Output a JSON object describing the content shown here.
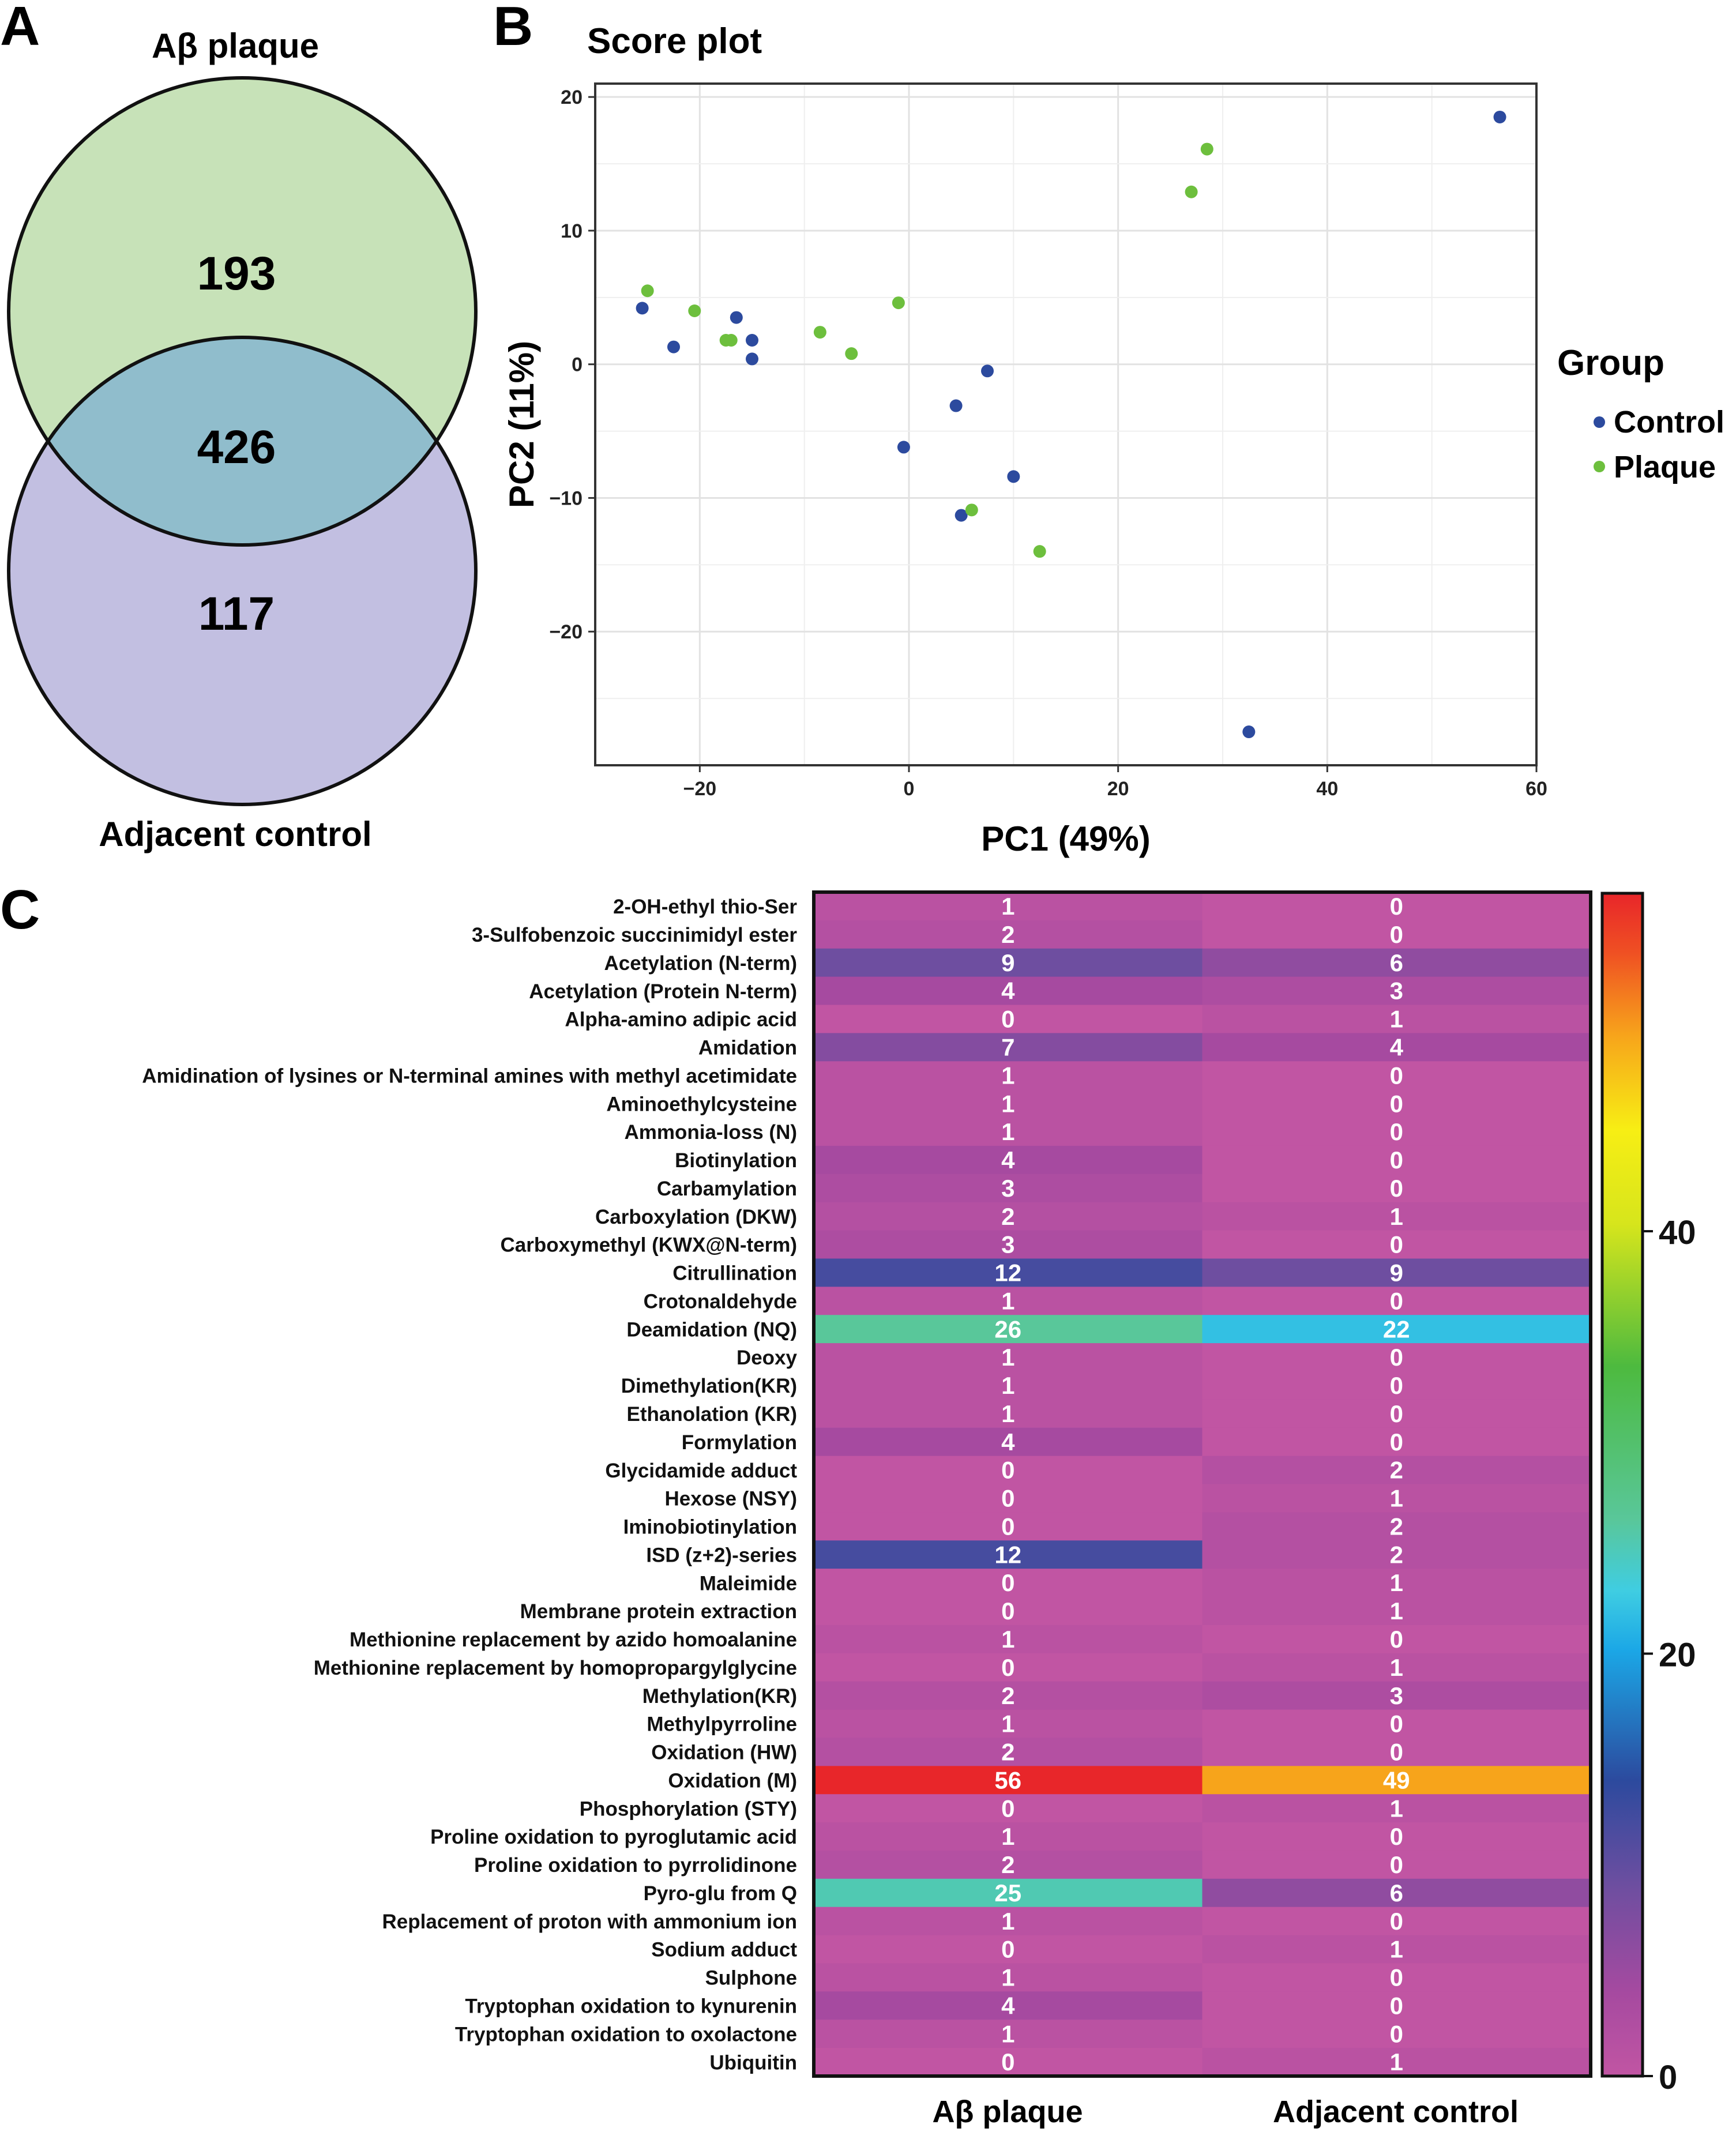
{
  "panels": {
    "a": {
      "letter": "A"
    },
    "b": {
      "letter": "B"
    },
    "c": {
      "letter": "C"
    }
  },
  "colors": {
    "venn_top": "#c7e2b8",
    "venn_bottom": "#c2bfe1",
    "venn_overlap": "#90bdcc",
    "control": "#2c4a9e",
    "plaque": "#6dbf3d"
  },
  "chart_data": [
    {
      "type": "venn",
      "sets": [
        {
          "name": "Aβ plaque",
          "only": 193
        },
        {
          "name": "Adjacent control",
          "only": 117
        }
      ],
      "overlap": 426
    },
    {
      "type": "scatter",
      "title": "Score plot",
      "xlabel": "PC1 (49%)",
      "ylabel": "PC2  (11%)",
      "xlim": [
        -30,
        60
      ],
      "ylim": [
        -30,
        21
      ],
      "xticks": [
        -20,
        0,
        20,
        40,
        60
      ],
      "xtick_labels": [
        "−20",
        "0",
        "20",
        "40",
        "60"
      ],
      "yticks": [
        -20,
        -10,
        0,
        10,
        20
      ],
      "ytick_labels": [
        "−20",
        "−10",
        "0",
        "10",
        "20"
      ],
      "grid": true,
      "legend": {
        "title": "Group",
        "position": "right"
      },
      "series": [
        {
          "name": "Control",
          "color": "#2c4a9e",
          "points": [
            [
              56.5,
              18.5
            ],
            [
              -25.5,
              4.2
            ],
            [
              -22.5,
              1.3
            ],
            [
              -16.5,
              3.5
            ],
            [
              -15.0,
              1.8
            ],
            [
              -15.0,
              0.4
            ],
            [
              7.5,
              -0.5
            ],
            [
              4.5,
              -3.1
            ],
            [
              -0.5,
              -6.2
            ],
            [
              10.0,
              -8.4
            ],
            [
              5.0,
              -11.3
            ],
            [
              32.5,
              -27.5
            ]
          ]
        },
        {
          "name": "Plaque",
          "color": "#6dbf3d",
          "points": [
            [
              28.5,
              16.1
            ],
            [
              27.0,
              12.9
            ],
            [
              -25.0,
              5.5
            ],
            [
              -20.5,
              4.0
            ],
            [
              -17.5,
              1.8
            ],
            [
              -17.0,
              1.8
            ],
            [
              -8.5,
              2.4
            ],
            [
              -5.5,
              0.8
            ],
            [
              -1.0,
              4.6
            ],
            [
              6.0,
              -10.9
            ],
            [
              12.5,
              -14.0
            ]
          ]
        }
      ]
    },
    {
      "type": "heatmap",
      "columns": [
        "Aβ plaque",
        "Adjacent control"
      ],
      "colorbar": {
        "min": 0,
        "max": 56,
        "ticks": [
          0,
          20,
          40
        ]
      },
      "rows": [
        {
          "label": "2-OH-ethyl thio-Ser",
          "values": [
            1,
            0
          ]
        },
        {
          "label": "3-Sulfobenzoic succinimidyl ester",
          "values": [
            2,
            0
          ]
        },
        {
          "label": "Acetylation (N-term)",
          "values": [
            9,
            6
          ]
        },
        {
          "label": "Acetylation (Protein N-term)",
          "values": [
            4,
            3
          ]
        },
        {
          "label": "Alpha-amino adipic acid",
          "values": [
            0,
            1
          ]
        },
        {
          "label": "Amidation",
          "values": [
            7,
            4
          ]
        },
        {
          "label": "Amidination of lysines or N-terminal amines with methyl acetimidate",
          "values": [
            1,
            0
          ]
        },
        {
          "label": "Aminoethylcysteine",
          "values": [
            1,
            0
          ]
        },
        {
          "label": "Ammonia-loss (N)",
          "values": [
            1,
            0
          ]
        },
        {
          "label": "Biotinylation",
          "values": [
            4,
            0
          ]
        },
        {
          "label": "Carbamylation",
          "values": [
            3,
            0
          ]
        },
        {
          "label": "Carboxylation (DKW)",
          "values": [
            2,
            1
          ]
        },
        {
          "label": "Carboxymethyl (KWX@N-term)",
          "values": [
            3,
            0
          ]
        },
        {
          "label": "Citrullination",
          "values": [
            12,
            9
          ]
        },
        {
          "label": "Crotonaldehyde",
          "values": [
            1,
            0
          ]
        },
        {
          "label": "Deamidation (NQ)",
          "values": [
            26,
            22
          ]
        },
        {
          "label": "Deoxy",
          "values": [
            1,
            0
          ]
        },
        {
          "label": "Dimethylation(KR)",
          "values": [
            1,
            0
          ]
        },
        {
          "label": "Ethanolation (KR)",
          "values": [
            1,
            0
          ]
        },
        {
          "label": "Formylation",
          "values": [
            4,
            0
          ]
        },
        {
          "label": "Glycidamide adduct",
          "values": [
            0,
            2
          ]
        },
        {
          "label": "Hexose (NSY)",
          "values": [
            0,
            1
          ]
        },
        {
          "label": "Iminobiotinylation",
          "values": [
            0,
            2
          ]
        },
        {
          "label": "ISD (z+2)-series",
          "values": [
            12,
            2
          ]
        },
        {
          "label": "Maleimide",
          "values": [
            0,
            1
          ]
        },
        {
          "label": "Membrane protein extraction",
          "values": [
            0,
            1
          ]
        },
        {
          "label": "Methionine replacement by azido homoalanine",
          "values": [
            1,
            0
          ]
        },
        {
          "label": "Methionine replacement by homopropargylglycine",
          "values": [
            0,
            1
          ]
        },
        {
          "label": "Methylation(KR)",
          "values": [
            2,
            3
          ]
        },
        {
          "label": "Methylpyrroline",
          "values": [
            1,
            0
          ]
        },
        {
          "label": "Oxidation (HW)",
          "values": [
            2,
            0
          ]
        },
        {
          "label": "Oxidation (M)",
          "values": [
            56,
            49
          ]
        },
        {
          "label": "Phosphorylation (STY)",
          "values": [
            0,
            1
          ]
        },
        {
          "label": "Proline oxidation to pyroglutamic acid",
          "values": [
            1,
            0
          ]
        },
        {
          "label": "Proline oxidation to pyrrolidinone",
          "values": [
            2,
            0
          ]
        },
        {
          "label": "Pyro-glu from Q",
          "values": [
            25,
            6
          ]
        },
        {
          "label": "Replacement of proton with ammonium ion",
          "values": [
            1,
            0
          ]
        },
        {
          "label": "Sodium adduct",
          "values": [
            0,
            1
          ]
        },
        {
          "label": "Sulphone",
          "values": [
            1,
            0
          ]
        },
        {
          "label": "Tryptophan oxidation to kynurenin",
          "values": [
            4,
            0
          ]
        },
        {
          "label": "Tryptophan oxidation to oxolactone",
          "values": [
            1,
            0
          ]
        },
        {
          "label": "Ubiquitin",
          "values": [
            0,
            1
          ]
        }
      ]
    }
  ]
}
